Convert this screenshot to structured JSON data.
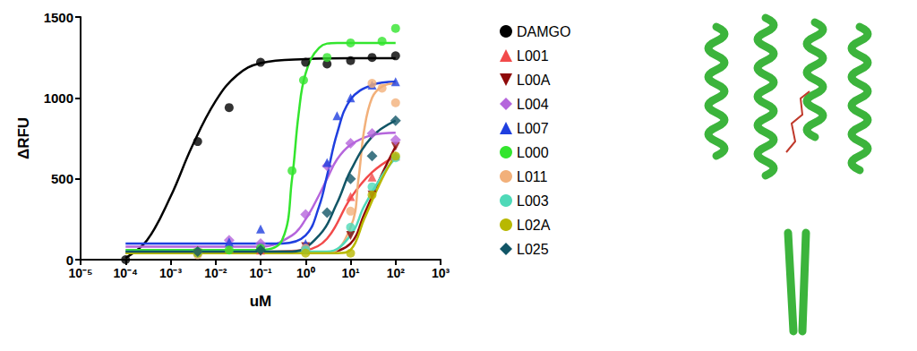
{
  "chart_data": {
    "type": "scatter",
    "x_label": "uM",
    "y_label": "ΔRFU",
    "log": "x",
    "grid": false,
    "legend": "right",
    "xlim": [
      1e-05,
      1000
    ],
    "xticks": [
      {
        "value": 1e-05,
        "label": "10⁻⁵"
      },
      {
        "value": 0.0001,
        "label": "10⁻⁴"
      },
      {
        "value": 0.001,
        "label": "10⁻³"
      },
      {
        "value": 0.01,
        "label": "10⁻²"
      },
      {
        "value": 0.1,
        "label": "10⁻¹"
      },
      {
        "value": 1,
        "label": "10⁰"
      },
      {
        "value": 10,
        "label": "10¹"
      },
      {
        "value": 100,
        "label": "10²"
      },
      {
        "value": 1000,
        "label": "10³"
      }
    ],
    "ylim": [
      0,
      1500
    ],
    "yticks": [
      0,
      500,
      1000,
      1500
    ],
    "series": [
      {
        "name": "DAMGO",
        "color": "#000000",
        "marker": "circle",
        "x": [
          0.0001,
          0.004,
          0.02,
          0.1,
          1,
          3,
          10,
          30,
          100
        ],
        "values": [
          0,
          730,
          940,
          1220,
          1220,
          1210,
          1230,
          1250,
          1260
        ],
        "fit_x": [
          0.0001,
          0.0003,
          0.001,
          0.003,
          0.01,
          0.03,
          0.1,
          1,
          10,
          100
        ],
        "fit_values": [
          10,
          120,
          390,
          700,
          980,
          1140,
          1215,
          1240,
          1245,
          1245
        ]
      },
      {
        "name": "L001",
        "color": "#f24a4a",
        "marker": "triangle",
        "x": [
          0.004,
          0.02,
          0.1,
          1,
          10,
          30,
          100
        ],
        "values": [
          60,
          70,
          60,
          80,
          390,
          510,
          640
        ],
        "fit_x": [
          0.0001,
          0.1,
          1,
          3,
          10,
          30,
          100
        ],
        "fit_values": [
          50,
          50,
          60,
          130,
          380,
          540,
          640
        ]
      },
      {
        "name": "L00A",
        "color": "#8f0a0a",
        "marker": "triangle-down",
        "x": [
          0.004,
          0.1,
          1,
          10,
          30,
          100
        ],
        "values": [
          40,
          50,
          80,
          150,
          400,
          700
        ],
        "fit_x": [
          0.0001,
          1,
          3,
          10,
          20,
          50,
          100
        ],
        "fit_values": [
          40,
          40,
          45,
          100,
          280,
          530,
          700
        ]
      },
      {
        "name": "L004",
        "color": "#b565dc",
        "marker": "diamond",
        "x": [
          0.02,
          0.1,
          1,
          3,
          10,
          30,
          100
        ],
        "values": [
          120,
          100,
          280,
          580,
          720,
          780,
          740
        ],
        "fit_x": [
          0.0001,
          0.1,
          0.5,
          1,
          2,
          3,
          5,
          10,
          30,
          100
        ],
        "fit_values": [
          80,
          80,
          150,
          250,
          400,
          500,
          620,
          710,
          770,
          785
        ]
      },
      {
        "name": "L007",
        "color": "#1f3fdf",
        "marker": "triangle",
        "x": [
          0.02,
          0.1,
          1,
          3,
          5,
          10,
          30,
          100
        ],
        "values": [
          110,
          190,
          100,
          600,
          890,
          1000,
          1080,
          1100
        ],
        "fit_x": [
          0.0001,
          0.3,
          1,
          2,
          3,
          5,
          10,
          30,
          100
        ],
        "fit_values": [
          100,
          100,
          150,
          330,
          520,
          780,
          990,
          1080,
          1100
        ]
      },
      {
        "name": "L000",
        "color": "#33e52e",
        "marker": "circle",
        "x": [
          0.004,
          0.02,
          0.1,
          0.5,
          0.9,
          3,
          10,
          50,
          100
        ],
        "values": [
          50,
          60,
          70,
          550,
          1110,
          1250,
          1340,
          1350,
          1430
        ],
        "fit_x": [
          0.0001,
          0.1,
          0.3,
          0.5,
          0.7,
          1,
          2,
          5,
          100
        ],
        "fit_values": [
          60,
          60,
          120,
          500,
          900,
          1150,
          1310,
          1340,
          1340
        ]
      },
      {
        "name": "L011",
        "color": "#f2b07a",
        "marker": "circle",
        "x": [
          0.004,
          1,
          10,
          30,
          50,
          100
        ],
        "values": [
          30,
          70,
          300,
          1090,
          1060,
          970
        ],
        "fit_x": [
          0.0001,
          3,
          10,
          15,
          20,
          30,
          50,
          100
        ],
        "fit_values": [
          40,
          40,
          200,
          500,
          800,
          1000,
          1070,
          1090
        ]
      },
      {
        "name": "L003",
        "color": "#4fd9b8",
        "marker": "circle",
        "x": [
          0.004,
          1,
          10,
          30,
          100
        ],
        "values": [
          40,
          60,
          200,
          450,
          630
        ],
        "fit_x": [
          0.0001,
          3,
          10,
          20,
          50,
          100
        ],
        "fit_values": [
          50,
          50,
          150,
          330,
          520,
          630
        ]
      },
      {
        "name": "L02A",
        "color": "#b8b800",
        "marker": "circle",
        "x": [
          0.004,
          1,
          10,
          30,
          100
        ],
        "values": [
          40,
          40,
          40,
          400,
          640
        ],
        "fit_x": [
          0.0001,
          5,
          10,
          20,
          50,
          100
        ],
        "fit_values": [
          40,
          40,
          60,
          250,
          500,
          650
        ]
      },
      {
        "name": "L025",
        "color": "#115566",
        "marker": "diamond",
        "x": [
          0.004,
          0.1,
          3,
          10,
          30,
          100
        ],
        "values": [
          50,
          60,
          290,
          500,
          640,
          860
        ],
        "fit_x": [
          0.0001,
          0.5,
          2,
          5,
          10,
          30,
          100
        ],
        "fit_values": [
          50,
          50,
          150,
          350,
          550,
          760,
          860
        ]
      }
    ]
  }
}
